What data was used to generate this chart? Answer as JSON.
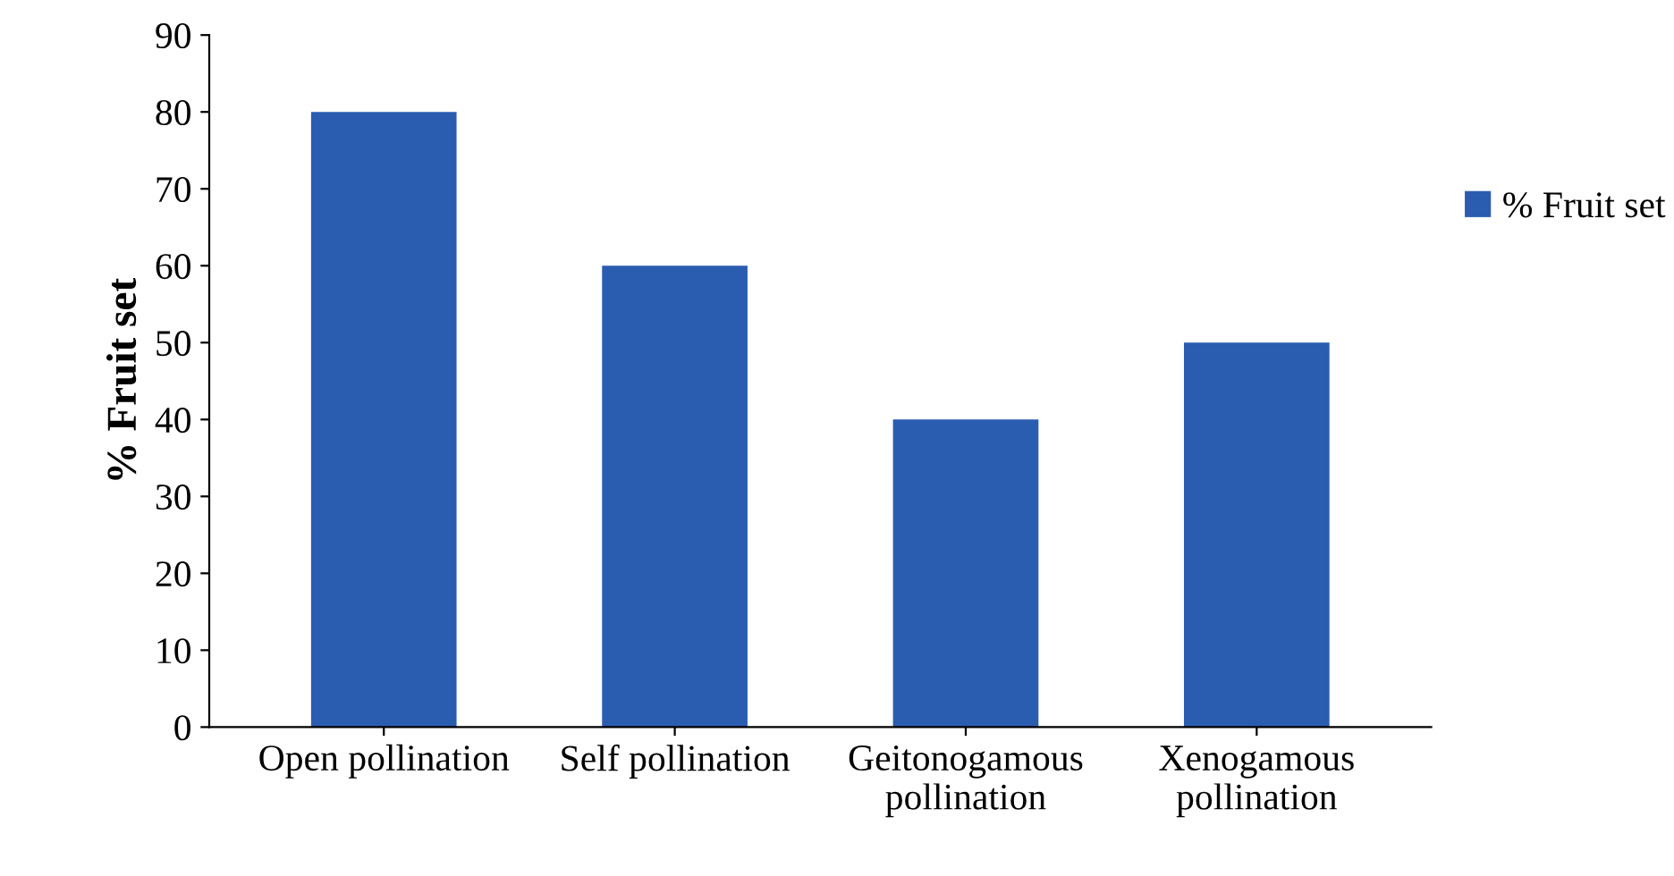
{
  "chart_data": {
    "type": "bar",
    "ylabel": "% Fruit set",
    "categories": [
      "Open pollination",
      "Self pollination",
      "Geitonogamous\npollination",
      "Xenogamous\npollination"
    ],
    "series": [
      {
        "name": "% Fruit set",
        "color": "#2a5db0",
        "values": [
          80,
          60,
          40,
          50
        ]
      }
    ],
    "ylim": [
      0,
      90
    ],
    "yticks": [
      0,
      10,
      20,
      30,
      40,
      50,
      60,
      70,
      80,
      90
    ],
    "grid": false,
    "legend": "right"
  }
}
